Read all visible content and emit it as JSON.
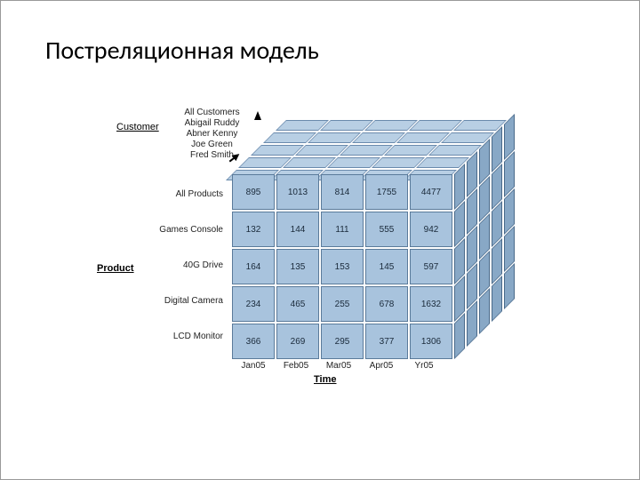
{
  "title": "Постреляционная модель",
  "cube": {
    "type": "olap-cube",
    "background_color": "#ffffff",
    "face_color": "#a8c3dd",
    "top_color": "#b8cfe4",
    "side_color": "#88a8c6",
    "border_color": "#5a7a9a",
    "cell_fontsize": 10,
    "label_fontsize": 10,
    "title_fontsize": 28,
    "dimensions": {
      "customer": {
        "axis_label": "Customer",
        "values": [
          "All Customers",
          "Abigail Ruddy",
          "Abner Kenny",
          "Joe Green",
          "Fred Smith"
        ]
      },
      "product": {
        "axis_label": "Product",
        "values": [
          "All Products",
          "Games Console",
          "40G Drive",
          "Digital Camera",
          "LCD Monitor"
        ]
      },
      "time": {
        "axis_label": "Time",
        "values": [
          "Jan05",
          "Feb05",
          "Mar05",
          "Apr05",
          "Yr05"
        ]
      }
    },
    "front_values": [
      [
        895,
        1013,
        814,
        1755,
        4477
      ],
      [
        132,
        144,
        111,
        555,
        942
      ],
      [
        164,
        135,
        153,
        145,
        597
      ],
      [
        234,
        465,
        255,
        678,
        1632
      ],
      [
        366,
        269,
        295,
        377,
        1306
      ]
    ]
  }
}
